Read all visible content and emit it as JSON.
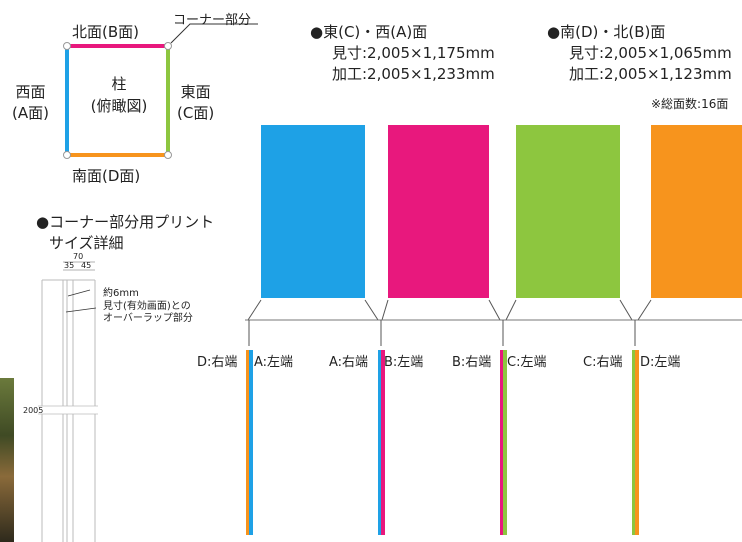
{
  "plan": {
    "north": "北面(B面)",
    "corner_note": "コーナー部分",
    "west_line1": "西面",
    "west_line2": "(A面)",
    "center_line1": "柱",
    "center_line2": "(俯瞰図)",
    "east_line1": "東面",
    "east_line2": "(C面)",
    "south": "南面(D面)"
  },
  "specs": {
    "east_west": {
      "title": "●東(C)・西(A)面",
      "size": "見寸:2,005×1,175mm",
      "process": "加工:2,005×1,233mm"
    },
    "south_north": {
      "title": "●南(D)・北(B)面",
      "size": "見寸:2,005×1,065mm",
      "process": "加工:2,005×1,123mm"
    },
    "total": "※総面数:16面"
  },
  "corner_print": {
    "title_line1": "●コーナー部分用プリント",
    "title_line2": "サイズ詳細",
    "dim_70": "70",
    "dim_35": "35",
    "dim_45": "45",
    "dim_6mm": "約6mm",
    "overlap_line1": "見寸(有効画面)との",
    "overlap_line2": "オーバーラップ部分",
    "height": "2005"
  },
  "edge_labels": [
    "D:右端",
    "A:左端",
    "A:右端",
    "B:左端",
    "B:右端",
    "C:左端",
    "C:右端",
    "D:左端"
  ],
  "colors": {
    "blue": "#1ea1e6",
    "magenta": "#e8187d",
    "green": "#8dc63f",
    "orange": "#f7941d"
  }
}
